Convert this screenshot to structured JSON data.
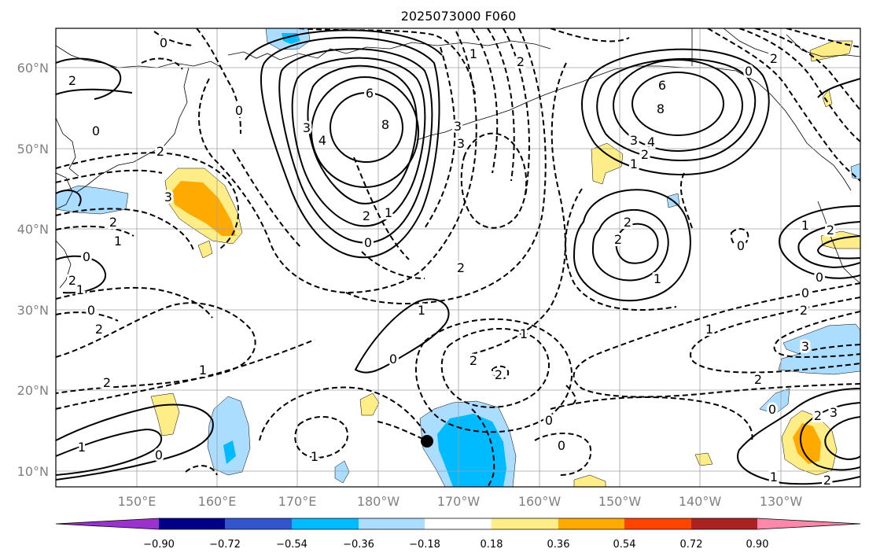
{
  "title": "2025073000 F060",
  "lat_labels": [
    "60°N",
    "50°N",
    "40°N",
    "30°N",
    "20°N",
    "10°N"
  ],
  "lon_labels": [
    "150°E",
    "160°E",
    "170°E",
    "180°W",
    "170°W",
    "160°W",
    "150°W",
    "140°W",
    "130°W"
  ],
  "colorbar": {
    "colors": [
      "#9933cc",
      "#000088",
      "#3355cc",
      "#00bbff",
      "#aaddff",
      "#ffffff",
      "#ffee88",
      "#ffaa00",
      "#ff4400",
      "#aa2222",
      "#ff88aa"
    ],
    "ticks": [
      "−0.90",
      "−0.72",
      "−0.54",
      "−0.36",
      "−0.18",
      "0.18",
      "0.36",
      "0.54",
      "0.72",
      "0.90"
    ]
  },
  "contour_labels": {
    "l01": "0",
    "l02": "2",
    "l03": "0",
    "l04": "2",
    "l05": "2",
    "l06": "3",
    "l07": "3",
    "l08": "4",
    "l09": "6",
    "l10": "8",
    "l11": "3",
    "l12": "2",
    "l13": "1",
    "l14": "0",
    "l15": "2",
    "l16": "1",
    "l17": "2",
    "l18": "1",
    "l19": "3",
    "l20": "2",
    "l21": "1",
    "l22": "0",
    "l23": "0",
    "l24": "1",
    "l25": "2",
    "l26": "1",
    "l27": "2",
    "l28": "0",
    "l29": "1",
    "l30": "0",
    "l31": "1",
    "l32": "2",
    "l33": "1",
    "l34": "2",
    "l35": "0",
    "l36": "6",
    "l37": "8",
    "l38": "3",
    "l39": "4",
    "l40": "2",
    "l41": "1",
    "l42": "2",
    "l43": "2",
    "l44": "1",
    "l45": "0",
    "l46": "2",
    "l47": "1",
    "l48": "2",
    "l49": "0",
    "l50": "0",
    "l51": "1",
    "l52": "2",
    "l53": "3",
    "l54": "0",
    "l55": "2",
    "l56": "3",
    "l57": "1",
    "l58": "2",
    "l59": "0",
    "l60": "0",
    "l61": "2",
    "l62": "0"
  }
}
